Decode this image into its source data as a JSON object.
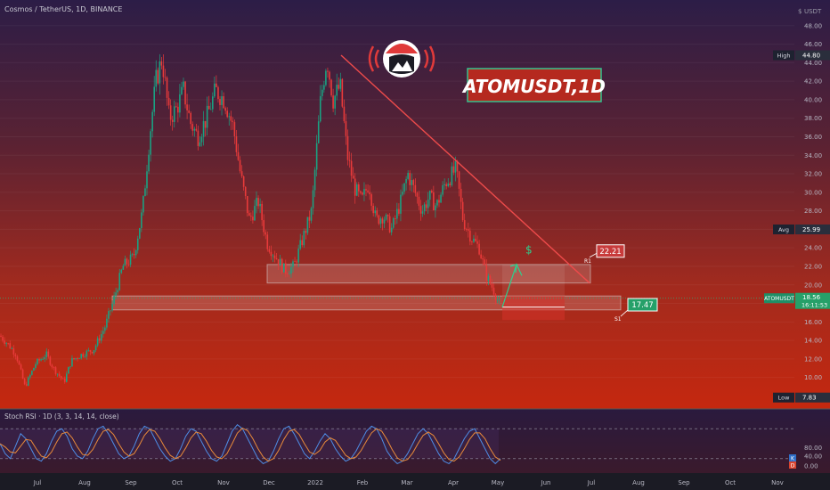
{
  "header": {
    "symbol_title": "Cosmos / TetherUS, 1D, BINANCE",
    "price_axis_currency": "USDT",
    "price_axis_top_label": "$"
  },
  "banner": {
    "text": "ATOMUSDT,1D"
  },
  "chart_data": {
    "type": "candlestick",
    "symbol": "ATOMUSDT",
    "interval": "1D",
    "exchange": "BINANCE",
    "y_ticks": [
      10,
      12,
      14,
      16,
      18,
      20,
      22,
      24,
      26,
      28,
      30,
      32,
      34,
      36,
      38,
      40,
      42,
      44,
      46,
      48
    ],
    "y_tick_labels": [
      "10.00",
      "12.00",
      "14.00",
      "16.00",
      "18.00",
      "20.00",
      "22.00",
      "24.00",
      "26.00",
      "28.00",
      "30.00",
      "32.00",
      "34.00",
      "36.00",
      "38.00",
      "40.00",
      "42.00",
      "44.00",
      "46.00",
      "48.00"
    ],
    "ylim": [
      6.6,
      50
    ],
    "x_labels": [
      "Jul",
      "Aug",
      "Sep",
      "Oct",
      "Nov",
      "Dec",
      "2022",
      "Feb",
      "Mar",
      "Apr",
      "May",
      "Jun",
      "Jul",
      "Aug",
      "Sep",
      "Oct",
      "Nov"
    ],
    "price_path": [
      [
        0,
        14.5
      ],
      [
        10,
        13.5
      ],
      [
        18,
        12.5
      ],
      [
        28,
        9.0
      ],
      [
        40,
        11.5
      ],
      [
        52,
        12.5
      ],
      [
        60,
        11.0
      ],
      [
        72,
        9.5
      ],
      [
        80,
        11.8
      ],
      [
        92,
        12.5
      ],
      [
        105,
        13.0
      ],
      [
        118,
        15.5
      ],
      [
        128,
        18.5
      ],
      [
        138,
        22.0
      ],
      [
        150,
        23.0
      ],
      [
        160,
        28.0
      ],
      [
        168,
        36.0
      ],
      [
        175,
        42.0
      ],
      [
        182,
        44.5
      ],
      [
        190,
        38.0
      ],
      [
        198,
        39.0
      ],
      [
        206,
        41.0
      ],
      [
        214,
        37.5
      ],
      [
        222,
        36.0
      ],
      [
        232,
        38.0
      ],
      [
        242,
        41.0
      ],
      [
        252,
        40.0
      ],
      [
        262,
        37.0
      ],
      [
        270,
        32.0
      ],
      [
        280,
        27.0
      ],
      [
        290,
        29.0
      ],
      [
        300,
        24.5
      ],
      [
        310,
        23.0
      ],
      [
        320,
        21.5
      ],
      [
        330,
        22.0
      ],
      [
        340,
        25.0
      ],
      [
        350,
        28.0
      ],
      [
        360,
        40.0
      ],
      [
        367,
        44.5
      ],
      [
        374,
        40.0
      ],
      [
        382,
        41.5
      ],
      [
        390,
        34.0
      ],
      [
        398,
        30.5
      ],
      [
        406,
        29.0
      ],
      [
        414,
        31.0
      ],
      [
        422,
        27.0
      ],
      [
        430,
        27.5
      ],
      [
        440,
        26.0
      ],
      [
        450,
        29.0
      ],
      [
        458,
        32.0
      ],
      [
        466,
        30.0
      ],
      [
        474,
        28.0
      ],
      [
        482,
        29.5
      ],
      [
        490,
        28.5
      ],
      [
        500,
        31.0
      ],
      [
        512,
        32.5
      ],
      [
        520,
        27.0
      ],
      [
        530,
        25.0
      ],
      [
        538,
        24.0
      ],
      [
        546,
        21.0
      ],
      [
        554,
        19.5
      ],
      [
        562,
        17.6
      ]
    ],
    "series": [
      {
        "name": "Avg",
        "value": 25.99,
        "label": "25.99"
      },
      {
        "name": "High",
        "value": 44.8,
        "label": "44.80"
      },
      {
        "name": "Low",
        "value": 7.83,
        "label": "7.83"
      }
    ],
    "levels": [
      {
        "name": "R1",
        "value": 22.21,
        "label": "22.21"
      },
      {
        "name": "S1",
        "value": 17.47,
        "label": "17.47"
      }
    ],
    "zones": [
      {
        "name": "resistance-zone",
        "low": 20.2,
        "high": 22.2
      },
      {
        "name": "support-zone",
        "low": 17.3,
        "high": 18.8
      }
    ],
    "current_price": {
      "ticker": "ATOMUSDT",
      "value": 18.56,
      "label": "18.56",
      "countdown": "16:11:53"
    },
    "trendline": {
      "from": [
        383,
        44.8
      ],
      "to": [
        662,
        20.2
      ]
    },
    "projection": {
      "target_label": "$"
    }
  },
  "oscillator": {
    "title": "Stoch RSI · 1D (3, 3, 14, 14, close)",
    "y_ticks": [
      "80.00",
      "40.00",
      "0.00"
    ],
    "values_k": [
      50,
      30,
      20,
      45,
      70,
      60,
      40,
      20,
      15,
      30,
      55,
      75,
      80,
      65,
      40,
      25,
      20,
      35,
      60,
      80,
      85,
      70,
      50,
      30,
      20,
      25,
      45,
      70,
      85,
      80,
      60,
      40,
      25,
      15,
      20,
      40,
      65,
      80,
      75,
      55,
      35,
      20,
      15,
      25,
      50,
      75,
      88,
      80,
      60,
      40,
      20,
      10,
      15,
      35,
      60,
      80,
      85,
      70,
      50,
      30,
      20,
      35,
      55,
      70,
      60,
      40,
      25,
      15,
      20,
      35,
      55,
      75,
      85,
      80,
      60,
      35,
      20,
      10,
      15,
      30,
      50,
      70,
      80,
      70,
      50,
      30,
      15,
      10,
      20,
      40,
      60,
      75,
      80,
      60,
      40,
      20,
      10,
      20
    ],
    "badge_k": "K",
    "badge_d": "D"
  },
  "colors": {
    "candle_up": "#1aa182",
    "candle_down": "#e83a3a",
    "trendline": "#ee4b4b",
    "zone_stroke": "#d8d8d8",
    "current_price": "#2ab07a",
    "r1_label_bg": "#c83b3b",
    "s1_label_bg": "#26a069"
  }
}
